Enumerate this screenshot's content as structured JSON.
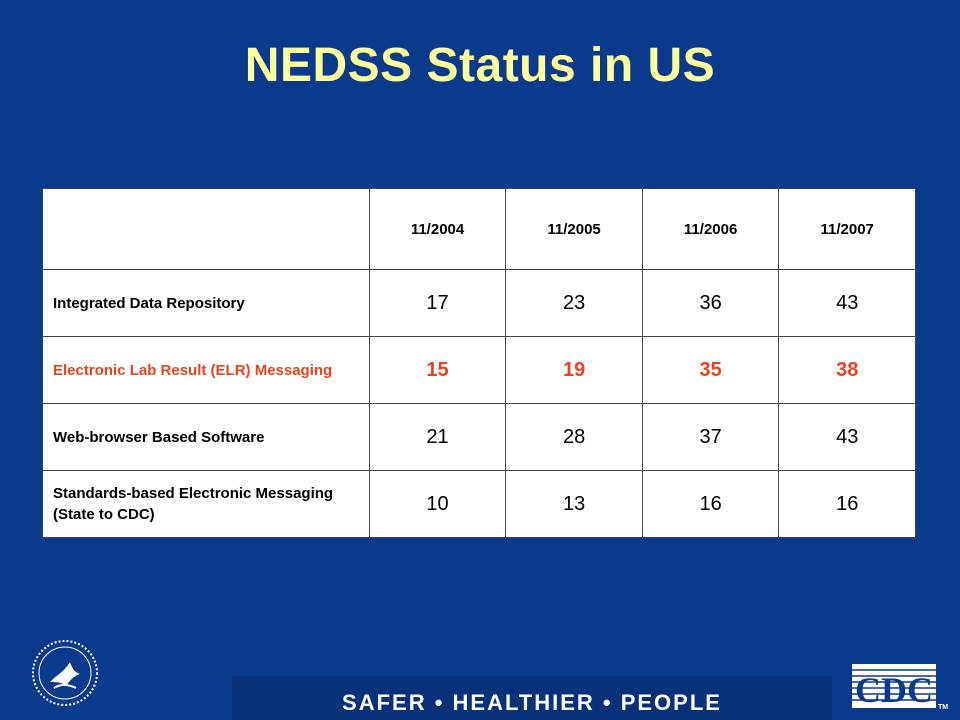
{
  "slide": {
    "title": "NEDSS Status in US",
    "tagline": "SAFER • HEALTHIER • PEOPLE",
    "logo_right": "CDC",
    "trademark": "TM"
  },
  "table": {
    "columns": [
      "11/2004",
      "11/2005",
      "11/2006",
      "11/2007"
    ],
    "rows": [
      {
        "label": "Integrated Data Repository",
        "values": [
          "17",
          "23",
          "36",
          "43"
        ],
        "highlight": false
      },
      {
        "label": "Electronic Lab Result (ELR) Messaging",
        "values": [
          "15",
          "19",
          "35",
          "38"
        ],
        "highlight": true
      },
      {
        "label": "Web-browser Based Software",
        "values": [
          "21",
          "28",
          "37",
          "43"
        ],
        "highlight": false
      },
      {
        "label": "Standards-based Electronic Messaging (State to CDC)",
        "values": [
          "10",
          "13",
          "16",
          "16"
        ],
        "highlight": false
      }
    ]
  },
  "colors": {
    "background": "#0a3a8c",
    "title": "#ffff99",
    "highlight_row": "#e8421f"
  },
  "icons": {
    "left_logo": "hhs-seal-icon",
    "right_logo": "cdc-logo-icon"
  }
}
